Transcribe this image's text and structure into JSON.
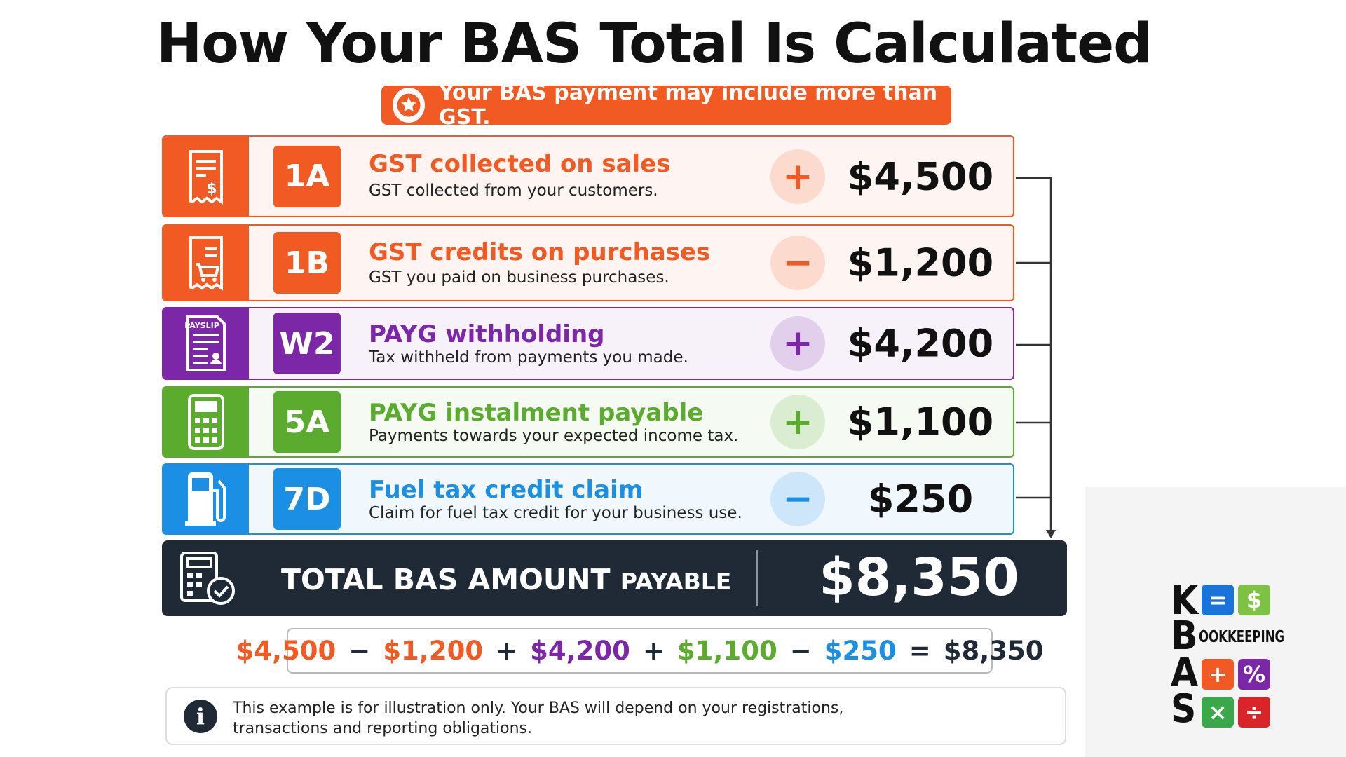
{
  "title": "How Your BAS Total Is Calculated",
  "banner": {
    "text": "Your BAS payment may include more than GST.",
    "color": "#f15a22"
  },
  "rows": [
    {
      "code": "1A",
      "title": "GST collected on sales",
      "description": "GST collected from your customers.",
      "sign": "+",
      "amount": "$4,500",
      "color": "#f15a22",
      "icon": "receipt-dollar"
    },
    {
      "code": "1B",
      "title": "GST credits on purchases",
      "description": "GST you paid on business purchases.",
      "sign": "−",
      "amount": "$1,200",
      "color": "#f15a22",
      "icon": "receipt-cart"
    },
    {
      "code": "W2",
      "title": "PAYG withholding",
      "description": "Tax withheld from payments you made.",
      "sign": "+",
      "amount": "$4,200",
      "color": "#7b27a8",
      "icon": "payslip",
      "icon_label": "PAYSLIP"
    },
    {
      "code": "5A",
      "title": "PAYG instalment payable",
      "description": "Payments towards your expected income tax.",
      "sign": "+",
      "amount": "$1,100",
      "color": "#5aab2e",
      "icon": "calculator"
    },
    {
      "code": "7D",
      "title": "Fuel tax credit claim",
      "description": "Claim for fuel tax credit for your business use.",
      "sign": "−",
      "amount": "$250",
      "color": "#1a8fe3",
      "icon": "fuel"
    }
  ],
  "total": {
    "label": "TOTAL BAS AMOUNT",
    "label_small": "PAYABLE",
    "amount": "$8,350",
    "color": "#1f2a36"
  },
  "formula": [
    {
      "text": "$4,500",
      "color": "#f15a22"
    },
    {
      "text": "−",
      "color": "#1f2a36"
    },
    {
      "text": "$1,200",
      "color": "#f15a22"
    },
    {
      "text": "+",
      "color": "#1f2a36"
    },
    {
      "text": "$4,200",
      "color": "#7b27a8"
    },
    {
      "text": "+",
      "color": "#1f2a36"
    },
    {
      "text": "$1,100",
      "color": "#5aab2e"
    },
    {
      "text": "−",
      "color": "#1f2a36"
    },
    {
      "text": "$250",
      "color": "#1a8fe3"
    },
    {
      "text": "=",
      "color": "#1f2a36"
    },
    {
      "text": "$8,350",
      "color": "#1f2a36"
    }
  ],
  "note": {
    "icon": "i",
    "lines": [
      "This example is for illustration only. Your BAS will depend on your registrations,",
      "transactions and reporting obligations."
    ]
  },
  "logo": {
    "letters": [
      "K",
      "B",
      "A",
      "S"
    ],
    "tagline": "OOKKEEPING",
    "tiles": [
      {
        "symbol": "=",
        "color": "#1a73d9"
      },
      {
        "symbol": "$",
        "color": "#7dc242"
      },
      {
        "symbol": "+",
        "color": "#f15a22"
      },
      {
        "symbol": "%",
        "color": "#7b27a8"
      },
      {
        "symbol": "×",
        "color": "#3aa84a"
      },
      {
        "symbol": "÷",
        "color": "#d9242a"
      }
    ]
  }
}
